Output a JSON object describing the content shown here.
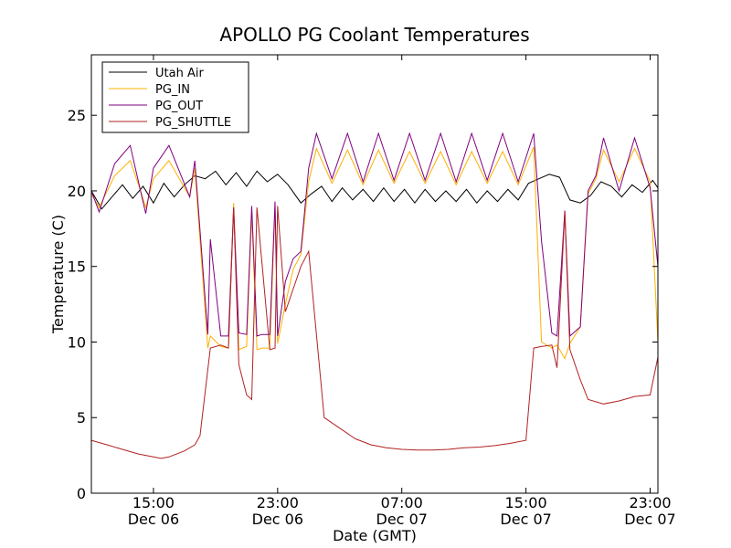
{
  "chart_data": {
    "type": "line",
    "title": "APOLLO PG Coolant Temperatures",
    "xlabel": "Date (GMT)",
    "ylabel": "Temperature (C)",
    "x_unit": "hours",
    "xlim": [
      "Dec 06 11:00",
      "Dec 07 23:30"
    ],
    "ylim": [
      0,
      29
    ],
    "yticks": [
      0,
      5,
      10,
      15,
      20,
      25
    ],
    "xticks": [
      {
        "time": "Dec 06 15:00",
        "label1": "15:00",
        "label2": "Dec 06"
      },
      {
        "time": "Dec 06 23:00",
        "label1": "23:00",
        "label2": "Dec 06"
      },
      {
        "time": "Dec 07 07:00",
        "label1": "07:00",
        "label2": "Dec 07"
      },
      {
        "time": "Dec 07 15:00",
        "label1": "15:00",
        "label2": "Dec 07"
      },
      {
        "time": "Dec 07 23:00",
        "label1": "23:00",
        "label2": "Dec 07"
      }
    ],
    "grid": false,
    "legend_position": "top-left",
    "series": [
      {
        "name": "Utah Air",
        "color": "#000000",
        "x": [
          "Dec 06 11:00",
          "Dec 06 11:40",
          "Dec 06 12:20",
          "Dec 06 13:00",
          "Dec 06 13:40",
          "Dec 06 14:20",
          "Dec 06 15:00",
          "Dec 06 15:40",
          "Dec 06 16:20",
          "Dec 06 17:00",
          "Dec 06 17:40",
          "Dec 06 18:20",
          "Dec 06 19:00",
          "Dec 06 19:40",
          "Dec 06 20:20",
          "Dec 06 21:00",
          "Dec 06 21:40",
          "Dec 06 22:20",
          "Dec 06 23:00",
          "Dec 06 23:40",
          "Dec 07 00:30",
          "Dec 07 01:10",
          "Dec 07 01:50",
          "Dec 07 02:30",
          "Dec 07 03:10",
          "Dec 07 03:50",
          "Dec 07 04:30",
          "Dec 07 05:10",
          "Dec 07 05:50",
          "Dec 07 06:30",
          "Dec 07 07:10",
          "Dec 07 07:50",
          "Dec 07 08:30",
          "Dec 07 09:10",
          "Dec 07 09:50",
          "Dec 07 10:30",
          "Dec 07 11:10",
          "Dec 07 11:50",
          "Dec 07 12:30",
          "Dec 07 13:10",
          "Dec 07 13:50",
          "Dec 07 14:30",
          "Dec 07 15:10",
          "Dec 07 15:50",
          "Dec 07 16:30",
          "Dec 07 17:10",
          "Dec 07 17:50",
          "Dec 07 18:30",
          "Dec 07 19:10",
          "Dec 07 19:50",
          "Dec 07 20:30",
          "Dec 07 21:10",
          "Dec 07 21:50",
          "Dec 07 22:30",
          "Dec 07 23:10",
          "Dec 07 23:30"
        ],
        "values": [
          20.0,
          18.8,
          19.6,
          20.4,
          19.5,
          20.3,
          19.2,
          20.5,
          19.6,
          20.4,
          21.0,
          20.8,
          21.3,
          20.4,
          21.2,
          20.3,
          21.3,
          20.6,
          21.1,
          20.4,
          19.2,
          19.8,
          20.3,
          19.3,
          20.2,
          19.4,
          20.1,
          19.3,
          20.2,
          19.3,
          20.1,
          19.2,
          20.1,
          19.3,
          20.0,
          19.3,
          20.1,
          19.2,
          20.0,
          19.3,
          20.1,
          19.4,
          20.5,
          20.8,
          21.1,
          20.9,
          19.4,
          19.2,
          19.7,
          20.6,
          20.3,
          19.6,
          20.4,
          19.9,
          20.7,
          20.2
        ]
      },
      {
        "name": "PG_IN",
        "color": "#ffb000",
        "x": [
          "Dec 06 11:00",
          "Dec 06 11:30",
          "Dec 06 12:30",
          "Dec 06 13:30",
          "Dec 06 14:10",
          "Dec 06 14:30",
          "Dec 06 15:00",
          "Dec 06 16:00",
          "Dec 06 17:20",
          "Dec 06 17:40",
          "Dec 06 18:30",
          "Dec 06 18:40",
          "Dec 06 19:20",
          "Dec 06 19:50",
          "Dec 06 20:10",
          "Dec 06 20:30",
          "Dec 06 21:00",
          "Dec 06 21:20",
          "Dec 06 21:40",
          "Dec 06 22:00",
          "Dec 06 22:30",
          "Dec 06 22:50",
          "Dec 06 23:00",
          "Dec 06 23:30",
          "Dec 07 00:00",
          "Dec 07 00:30",
          "Dec 07 01:00",
          "Dec 07 01:30",
          "Dec 07 02:30",
          "Dec 07 03:30",
          "Dec 07 04:30",
          "Dec 07 05:30",
          "Dec 07 06:30",
          "Dec 07 07:30",
          "Dec 07 08:30",
          "Dec 07 09:30",
          "Dec 07 10:30",
          "Dec 07 11:30",
          "Dec 07 12:30",
          "Dec 07 13:30",
          "Dec 07 14:30",
          "Dec 07 15:30",
          "Dec 07 16:00",
          "Dec 07 16:40",
          "Dec 07 17:00",
          "Dec 07 17:30",
          "Dec 07 17:50",
          "Dec 07 18:30",
          "Dec 07 19:00",
          "Dec 07 19:30",
          "Dec 07 20:00",
          "Dec 07 21:00",
          "Dec 07 22:00",
          "Dec 07 23:00",
          "Dec 07 23:30"
        ],
        "values": [
          19.8,
          18.9,
          21.0,
          22.0,
          20.0,
          18.9,
          20.8,
          22.0,
          19.6,
          21.5,
          9.6,
          10.4,
          9.7,
          9.6,
          19.2,
          9.5,
          9.7,
          18.5,
          9.5,
          9.6,
          9.6,
          18.8,
          9.9,
          12.5,
          14.8,
          15.8,
          20.6,
          22.8,
          20.5,
          22.7,
          20.4,
          22.7,
          20.5,
          22.6,
          20.5,
          22.6,
          20.4,
          22.6,
          20.5,
          22.6,
          20.4,
          22.9,
          10.0,
          9.6,
          9.8,
          8.9,
          9.9,
          11.0,
          19.8,
          20.8,
          22.7,
          20.6,
          22.8,
          20.6,
          10.0
        ]
      },
      {
        "name": "PG_OUT",
        "color": "#800080",
        "x": [
          "Dec 06 11:00",
          "Dec 06 11:30",
          "Dec 06 12:30",
          "Dec 06 13:30",
          "Dec 06 14:10",
          "Dec 06 14:30",
          "Dec 06 15:00",
          "Dec 06 16:00",
          "Dec 06 17:20",
          "Dec 06 17:40",
          "Dec 06 18:30",
          "Dec 06 18:40",
          "Dec 06 19:20",
          "Dec 06 19:50",
          "Dec 06 20:10",
          "Dec 06 20:30",
          "Dec 06 21:00",
          "Dec 06 21:20",
          "Dec 06 21:40",
          "Dec 06 22:00",
          "Dec 06 22:30",
          "Dec 06 22:50",
          "Dec 06 23:00",
          "Dec 06 23:30",
          "Dec 07 00:00",
          "Dec 07 00:30",
          "Dec 07 01:00",
          "Dec 07 01:30",
          "Dec 07 02:30",
          "Dec 07 03:30",
          "Dec 07 04:30",
          "Dec 07 05:30",
          "Dec 07 06:30",
          "Dec 07 07:30",
          "Dec 07 08:30",
          "Dec 07 09:30",
          "Dec 07 10:30",
          "Dec 07 11:30",
          "Dec 07 12:30",
          "Dec 07 13:30",
          "Dec 07 14:30",
          "Dec 07 15:30",
          "Dec 07 16:00",
          "Dec 07 16:40",
          "Dec 07 17:00",
          "Dec 07 17:30",
          "Dec 07 17:50",
          "Dec 07 18:30",
          "Dec 07 19:00",
          "Dec 07 19:30",
          "Dec 07 20:00",
          "Dec 07 21:00",
          "Dec 07 22:00",
          "Dec 07 23:00",
          "Dec 07 23:30"
        ],
        "values": [
          20.0,
          18.6,
          21.8,
          23.0,
          20.0,
          18.5,
          21.5,
          23.0,
          19.6,
          22.0,
          10.5,
          16.8,
          10.4,
          10.4,
          18.9,
          10.6,
          10.5,
          19.0,
          10.4,
          10.5,
          10.5,
          19.3,
          10.4,
          14.0,
          15.5,
          16.0,
          21.5,
          23.8,
          20.8,
          23.8,
          20.6,
          23.8,
          20.7,
          23.8,
          20.7,
          23.8,
          20.6,
          23.8,
          20.7,
          23.8,
          20.6,
          23.8,
          16.7,
          10.6,
          10.4,
          18.7,
          10.4,
          11.0,
          20.0,
          21.0,
          23.5,
          20.0,
          23.5,
          20.2,
          15.0
        ]
      },
      {
        "name": "PG_SHUTTLE",
        "color": "#b22222",
        "x": [
          "Dec 06 11:00",
          "Dec 06 12:00",
          "Dec 06 13:00",
          "Dec 06 14:00",
          "Dec 06 15:00",
          "Dec 06 15:30",
          "Dec 06 16:00",
          "Dec 06 17:00",
          "Dec 06 17:40",
          "Dec 06 18:00",
          "Dec 06 18:40",
          "Dec 06 19:20",
          "Dec 06 19:50",
          "Dec 06 20:10",
          "Dec 06 20:30",
          "Dec 06 21:00",
          "Dec 06 21:20",
          "Dec 06 21:40",
          "Dec 06 22:30",
          "Dec 06 22:50",
          "Dec 06 23:00",
          "Dec 06 23:30",
          "Dec 07 00:00",
          "Dec 07 00:30",
          "Dec 07 01:00",
          "Dec 07 02:00",
          "Dec 07 03:00",
          "Dec 07 04:00",
          "Dec 07 05:00",
          "Dec 07 06:00",
          "Dec 07 07:00",
          "Dec 07 08:00",
          "Dec 07 09:00",
          "Dec 07 10:00",
          "Dec 07 11:00",
          "Dec 07 12:00",
          "Dec 07 13:00",
          "Dec 07 14:00",
          "Dec 07 15:00",
          "Dec 07 15:30",
          "Dec 07 16:00",
          "Dec 07 16:40",
          "Dec 07 17:00",
          "Dec 07 17:30",
          "Dec 07 17:50",
          "Dec 07 18:30",
          "Dec 07 19:00",
          "Dec 07 20:00",
          "Dec 07 21:00",
          "Dec 07 22:00",
          "Dec 07 23:00",
          "Dec 07 23:30"
        ],
        "values": [
          3.5,
          3.2,
          2.9,
          2.6,
          2.4,
          2.3,
          2.4,
          2.8,
          3.2,
          3.8,
          9.6,
          9.8,
          9.6,
          18.9,
          8.5,
          6.5,
          6.2,
          18.9,
          9.5,
          9.6,
          19.0,
          12.0,
          13.5,
          15.0,
          16.0,
          5.0,
          4.3,
          3.6,
          3.2,
          3.0,
          2.9,
          2.85,
          2.85,
          2.9,
          3.0,
          3.05,
          3.15,
          3.3,
          3.5,
          9.6,
          9.7,
          9.8,
          8.3,
          18.6,
          9.5,
          7.5,
          6.2,
          5.9,
          6.1,
          6.4,
          6.5,
          9.0
        ]
      }
    ]
  }
}
